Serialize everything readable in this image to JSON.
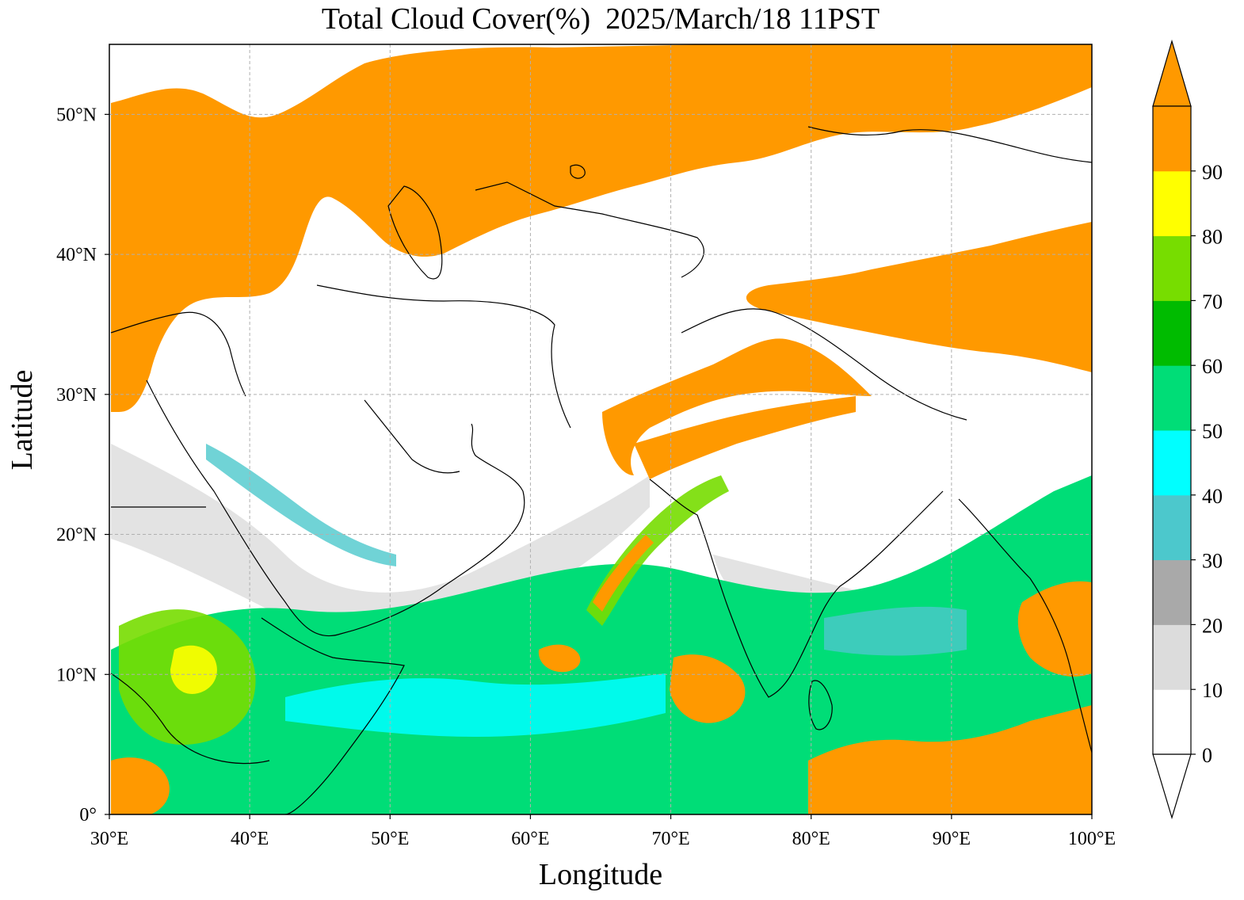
{
  "title": "Total Cloud Cover(%)  2025/March/18 11PST",
  "xlabel": "Longitude",
  "ylabel": "Latitude",
  "map": {
    "lon_range": [
      30,
      100
    ],
    "lat_range": [
      0,
      55
    ],
    "x_ticks": [
      30,
      40,
      50,
      60,
      70,
      80,
      90,
      100
    ],
    "x_tick_labels": [
      "30°E",
      "40°E",
      "50°E",
      "60°E",
      "70°E",
      "80°E",
      "90°E",
      "100°E"
    ],
    "y_ticks": [
      0,
      10,
      20,
      30,
      40,
      50
    ],
    "y_tick_labels": [
      "0°",
      "10°N",
      "20°N",
      "30°N",
      "40°N",
      "50°N"
    ],
    "grid": "dashed"
  },
  "colorbar": {
    "levels": [
      0,
      10,
      20,
      30,
      40,
      50,
      60,
      70,
      80,
      90
    ],
    "labels": [
      "0",
      "10",
      "20",
      "30",
      "40",
      "50",
      "60",
      "70",
      "80",
      "90"
    ],
    "colors": [
      "#ffffff",
      "#dcdcdc",
      "#a9a9a9",
      "#4cc8cc",
      "#00ffff",
      "#00dd77",
      "#00bb00",
      "#77dd00",
      "#ffff00",
      "#ff9900"
    ],
    "extend": "both"
  },
  "colors": {
    "orange": "#ff9900",
    "yellow": "#ffff00",
    "lightgreen": "#77dd00",
    "green": "#00bb00",
    "seagreen": "#00dd77",
    "cyan": "#00ffff",
    "teal": "#4cc8cc",
    "gray": "#a9a9a9",
    "lightgray": "#dcdcdc"
  }
}
